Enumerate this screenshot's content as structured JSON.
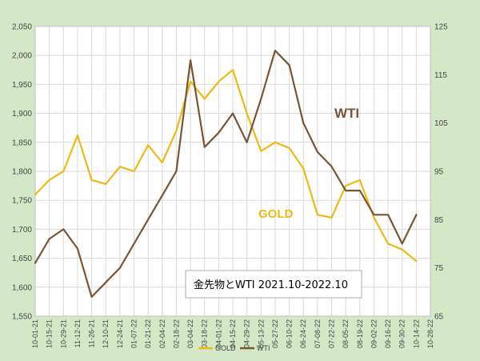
{
  "chart_data": {
    "type": "line",
    "title": "金先物とWTI 2021.10-2022.10",
    "x": [
      "10-01-21",
      "10-15-21",
      "10-29-21",
      "11-12-21",
      "11-26-21",
      "12-10-21",
      "12-24-21",
      "01-07-22",
      "01-21-22",
      "02-04-22",
      "02-18-22",
      "03-04-22",
      "03-18-22",
      "04-01-22",
      "04-15-22",
      "04-29-22",
      "05-13-22",
      "05-27-22",
      "06-10-22",
      "06-24-22",
      "07-08-22",
      "07-22-22",
      "08-05-22",
      "08-19-22",
      "09-02-22",
      "09-16-22",
      "09-30-22",
      "10-14-22",
      "10-28-22"
    ],
    "x_ticks": [
      "10-01-21",
      "10-15-21",
      "10-29-21",
      "11-12-21",
      "11-26-21",
      "12-10-21",
      "12-24-21",
      "01-07-22",
      "01-21-22",
      "02-04-22",
      "02-18-22",
      "03-04-22",
      "03-18-22",
      "04-01-22",
      "04-15-22",
      "04-29-22",
      "05-13-22",
      "05-27-22",
      "06-10-22",
      "06-24-22",
      "07-08-22",
      "07-22-22",
      "08-05-22",
      "08-19-22",
      "09-02-22",
      "09-16-22",
      "09-30-22",
      "10-14-22",
      "10-28-22"
    ],
    "y_left": {
      "min": 1550,
      "max": 2050,
      "ticks": [
        "1,550",
        "1,600",
        "1,650",
        "1,700",
        "1,750",
        "1,800",
        "1,850",
        "1,900",
        "1,950",
        "2,000",
        "2,050"
      ]
    },
    "y_right": {
      "min": 65,
      "max": 125,
      "ticks": [
        "65",
        "75",
        "85",
        "95",
        "105",
        "115",
        "125"
      ]
    },
    "grid": true,
    "legend": {
      "position": "bottom"
    },
    "series": [
      {
        "name": "GOLD",
        "axis": "left",
        "color": "#f0b814",
        "values": [
          1760,
          1785,
          1800,
          1862,
          1785,
          1778,
          1808,
          1800,
          1845,
          1815,
          1870,
          1955,
          1925,
          1955,
          1975,
          1900,
          1835,
          1850,
          1840,
          1805,
          1725,
          1720,
          1775,
          1785,
          1720,
          1675,
          1665,
          1645,
          null
        ]
      },
      {
        "name": "WTI",
        "axis": "right",
        "color": "#7b5434",
        "values": [
          76,
          81,
          83,
          79,
          69,
          72,
          75,
          80,
          85,
          90,
          95,
          118,
          100,
          103,
          107,
          101,
          110,
          120,
          117,
          105,
          99,
          96,
          91,
          91,
          86,
          86,
          80,
          86,
          null
        ]
      }
    ],
    "annotations": {
      "wti": "WTI",
      "gold": "GOLD"
    }
  }
}
